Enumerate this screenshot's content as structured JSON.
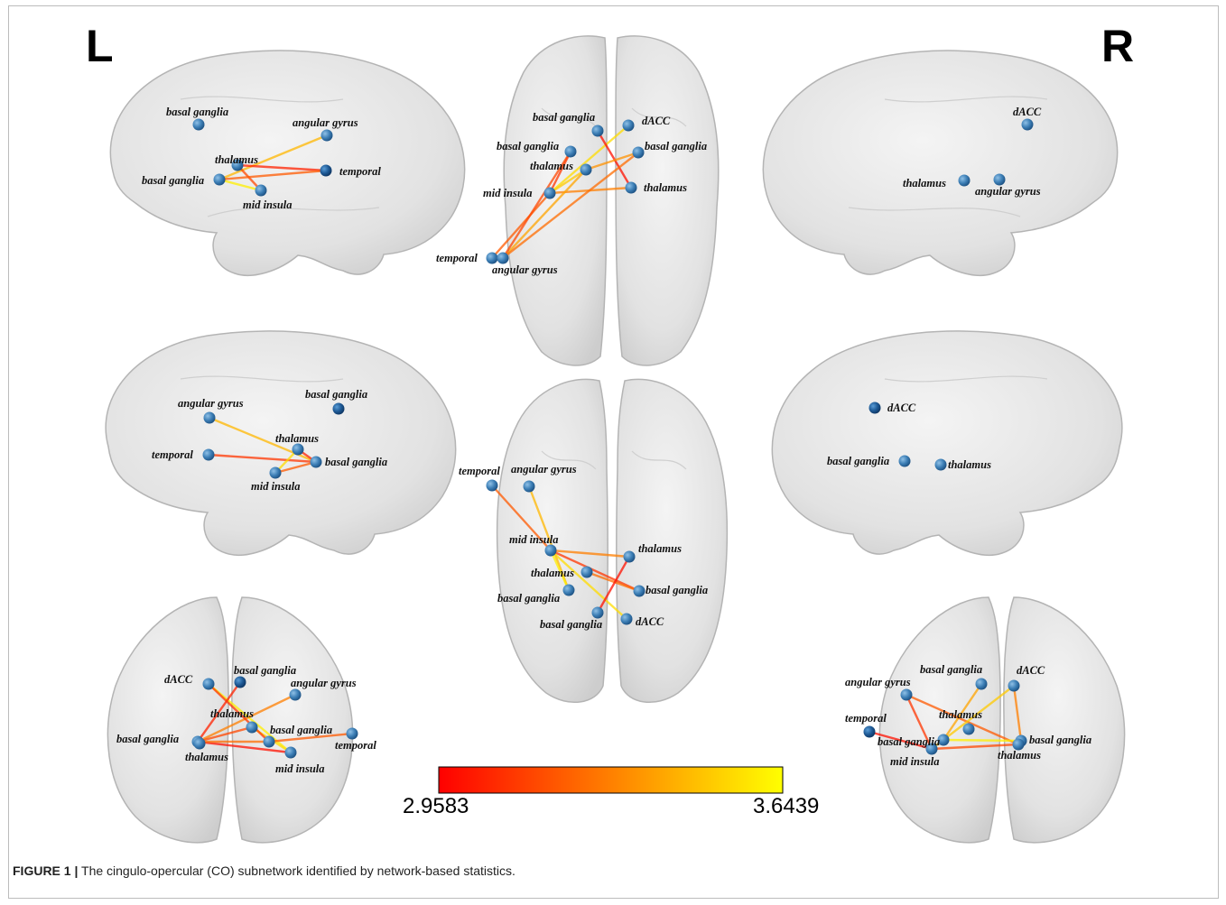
{
  "hemisphere_labels": {
    "left": "L",
    "right": "R"
  },
  "colorbar": {
    "min_label": "2.9583",
    "max_label": "3.6439",
    "color_min": "#ff0000",
    "color_max": "#ffff00"
  },
  "caption": {
    "id": "FIGURE 1 |",
    "text": " The cingulo-opercular (CO) subnetwork identified by network-based statistics."
  },
  "colors": {
    "node": "#3d7fb6",
    "node_dark": "#1e5a96",
    "brain_fill": "#e6e6e6",
    "brain_stroke": "#b4b4b4"
  },
  "views": [
    {
      "id": "left-lateral",
      "nodes": [
        {
          "id": "bg1",
          "label": "basal ganglia"
        },
        {
          "id": "ang",
          "label": "angular gyrus"
        },
        {
          "id": "thal",
          "label": "thalamus"
        },
        {
          "id": "temp",
          "label": "temporal"
        },
        {
          "id": "bg2",
          "label": "basal ganglia"
        },
        {
          "id": "mi",
          "label": "mid insula"
        }
      ],
      "edges": [
        {
          "from": "bg2",
          "to": "ang",
          "weight": 3.45
        },
        {
          "from": "thal",
          "to": "temp",
          "weight": 3.05
        },
        {
          "from": "bg2",
          "to": "mi",
          "weight": 3.6
        },
        {
          "from": "thal",
          "to": "mi",
          "weight": 3.15
        },
        {
          "from": "bg2",
          "to": "temp",
          "weight": 3.2
        }
      ]
    },
    {
      "id": "top-view",
      "nodes": [
        {
          "id": "bg_t",
          "label": "basal ganglia"
        },
        {
          "id": "dacc",
          "label": "dACC"
        },
        {
          "id": "bg_l",
          "label": "basal ganglia"
        },
        {
          "id": "bg_r",
          "label": "basal ganglia"
        },
        {
          "id": "thal_l",
          "label": "thalamus"
        },
        {
          "id": "mi",
          "label": "mid insula"
        },
        {
          "id": "thal_r",
          "label": "thalamus"
        },
        {
          "id": "temp",
          "label": "temporal"
        },
        {
          "id": "ang",
          "label": "angular gyrus"
        }
      ],
      "edges": [
        {
          "from": "mi",
          "to": "dacc",
          "weight": 3.55
        },
        {
          "from": "mi",
          "to": "bg_l",
          "weight": 3.1
        },
        {
          "from": "mi",
          "to": "thal_l",
          "weight": 3.5
        },
        {
          "from": "mi",
          "to": "thal_r",
          "weight": 3.3
        },
        {
          "from": "mi",
          "to": "temp",
          "weight": 3.2
        },
        {
          "from": "thal_l",
          "to": "ang",
          "weight": 3.4
        },
        {
          "from": "bg_t",
          "to": "thal_r",
          "weight": 3.0
        },
        {
          "from": "bg_r",
          "to": "ang",
          "weight": 3.25
        },
        {
          "from": "bg_l",
          "to": "ang",
          "weight": 3.15
        },
        {
          "from": "thal_l",
          "to": "bg_r",
          "weight": 3.35
        }
      ]
    },
    {
      "id": "right-lateral",
      "nodes": [
        {
          "id": "dacc",
          "label": "dACC"
        },
        {
          "id": "thal",
          "label": "thalamus"
        },
        {
          "id": "ang",
          "label": "angular gyrus"
        }
      ],
      "edges": []
    },
    {
      "id": "left-medial",
      "nodes": [
        {
          "id": "ang",
          "label": "angular gyrus"
        },
        {
          "id": "bg1",
          "label": "basal ganglia"
        },
        {
          "id": "thal",
          "label": "thalamus"
        },
        {
          "id": "temp",
          "label": "temporal"
        },
        {
          "id": "bg2",
          "label": "basal ganglia"
        },
        {
          "id": "mi",
          "label": "mid insula"
        }
      ],
      "edges": [
        {
          "from": "ang",
          "to": "bg2",
          "weight": 3.45
        },
        {
          "from": "temp",
          "to": "bg2",
          "weight": 3.1
        },
        {
          "from": "thal",
          "to": "mi",
          "weight": 3.55
        },
        {
          "from": "mi",
          "to": "bg2",
          "weight": 3.2
        },
        {
          "from": "thal",
          "to": "bg2",
          "weight": 3.05
        }
      ]
    },
    {
      "id": "bottom-view",
      "nodes": [
        {
          "id": "temp",
          "label": "temporal"
        },
        {
          "id": "ang",
          "label": "angular gyrus"
        },
        {
          "id": "mi",
          "label": "mid insula"
        },
        {
          "id": "thal_r",
          "label": "thalamus"
        },
        {
          "id": "thal_l",
          "label": "thalamus"
        },
        {
          "id": "bg_l",
          "label": "basal ganglia"
        },
        {
          "id": "bg_r",
          "label": "basal ganglia"
        },
        {
          "id": "bg_c",
          "label": "basal ganglia"
        },
        {
          "id": "dacc",
          "label": "dACC"
        }
      ],
      "edges": [
        {
          "from": "temp",
          "to": "mi",
          "weight": 3.2
        },
        {
          "from": "ang",
          "to": "bg_l",
          "weight": 3.45
        },
        {
          "from": "mi",
          "to": "thal_r",
          "weight": 3.3
        },
        {
          "from": "mi",
          "to": "bg_r",
          "weight": 3.1
        },
        {
          "from": "mi",
          "to": "dacc",
          "weight": 3.55
        },
        {
          "from": "thal_l",
          "to": "bg_r",
          "weight": 3.25
        },
        {
          "from": "thal_r",
          "to": "bg_c",
          "weight": 3.0
        },
        {
          "from": "mi",
          "to": "bg_l",
          "weight": 3.6
        }
      ]
    },
    {
      "id": "right-medial",
      "nodes": [
        {
          "id": "dacc",
          "label": "dACC"
        },
        {
          "id": "bg",
          "label": "basal ganglia"
        },
        {
          "id": "thal",
          "label": "thalamus"
        }
      ],
      "edges": []
    },
    {
      "id": "anterior-view",
      "nodes": [
        {
          "id": "dacc",
          "label": "dACC"
        },
        {
          "id": "bg_t",
          "label": "basal ganglia"
        },
        {
          "id": "ang",
          "label": "angular gyrus"
        },
        {
          "id": "thal_l",
          "label": "thalamus"
        },
        {
          "id": "bg_l",
          "label": "basal ganglia"
        },
        {
          "id": "bg_m",
          "label": "basal ganglia"
        },
        {
          "id": "temp",
          "label": "temporal"
        },
        {
          "id": "thal_b",
          "label": "thalamus"
        },
        {
          "id": "mi",
          "label": "mid insula"
        }
      ],
      "edges": [
        {
          "from": "dacc",
          "to": "mi",
          "weight": 3.6
        },
        {
          "from": "bg_t",
          "to": "bg_l",
          "weight": 3.05
        },
        {
          "from": "bg_l",
          "to": "ang",
          "weight": 3.3
        },
        {
          "from": "bg_l",
          "to": "thal_l",
          "weight": 3.15
        },
        {
          "from": "bg_l",
          "to": "mi",
          "weight": 3.0
        },
        {
          "from": "bg_l",
          "to": "bg_m",
          "weight": 3.25
        },
        {
          "from": "thal_l",
          "to": "mi",
          "weight": 3.55
        },
        {
          "from": "bg_m",
          "to": "temp",
          "weight": 3.2
        },
        {
          "from": "dacc",
          "to": "bg_m",
          "weight": 3.1
        }
      ]
    },
    {
      "id": "posterior-view",
      "nodes": [
        {
          "id": "ang",
          "label": "angular gyrus"
        },
        {
          "id": "bg_t",
          "label": "basal ganglia"
        },
        {
          "id": "dacc",
          "label": "dACC"
        },
        {
          "id": "thal_m",
          "label": "thalamus"
        },
        {
          "id": "temp",
          "label": "temporal"
        },
        {
          "id": "bg_l",
          "label": "basal ganglia"
        },
        {
          "id": "mi",
          "label": "mid insula"
        },
        {
          "id": "bg_r",
          "label": "basal ganglia"
        },
        {
          "id": "thal_r",
          "label": "thalamus"
        }
      ],
      "edges": [
        {
          "from": "ang",
          "to": "thal_r",
          "weight": 3.2
        },
        {
          "from": "ang",
          "to": "mi",
          "weight": 3.1
        },
        {
          "from": "dacc",
          "to": "mi",
          "weight": 3.5
        },
        {
          "from": "dacc",
          "to": "bg_r",
          "weight": 3.3
        },
        {
          "from": "temp",
          "to": "mi",
          "weight": 3.0
        },
        {
          "from": "bg_t",
          "to": "bg_l",
          "weight": 3.4
        },
        {
          "from": "mi",
          "to": "thal_r",
          "weight": 3.15
        },
        {
          "from": "bg_l",
          "to": "bg_r",
          "weight": 3.6
        }
      ]
    }
  ]
}
